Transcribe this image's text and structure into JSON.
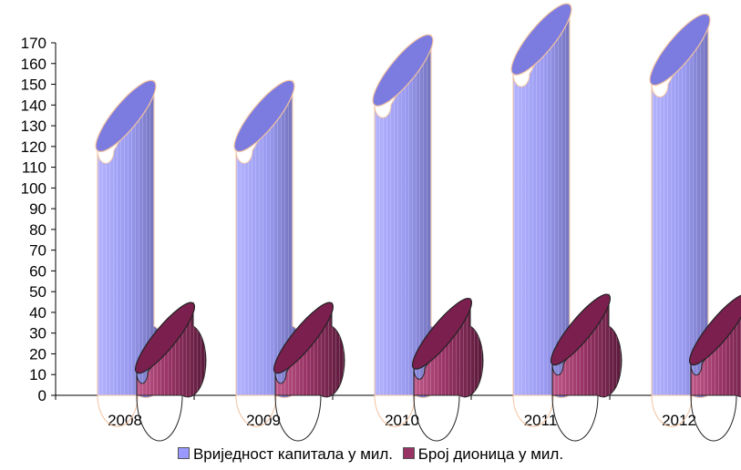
{
  "chart_data": {
    "type": "bar",
    "title": "",
    "xlabel": "",
    "ylabel": "",
    "categories": [
      "2008",
      "2009",
      "2010",
      "2011",
      "2012"
    ],
    "ylim": [
      0,
      170
    ],
    "yticks": [
      0,
      10,
      20,
      30,
      40,
      50,
      60,
      70,
      80,
      90,
      100,
      110,
      120,
      130,
      140,
      150,
      160,
      170
    ],
    "series": [
      {
        "name": "Вриједност капитала у мил.",
        "values": [
          118,
          118,
          140,
          155,
          150
        ],
        "color": "#9999ff"
      },
      {
        "name": "Број дионица у мил.",
        "values": [
          11,
          11,
          13,
          15,
          15
        ],
        "color": "#993366"
      }
    ],
    "legend_position": "bottom",
    "grid": false
  }
}
